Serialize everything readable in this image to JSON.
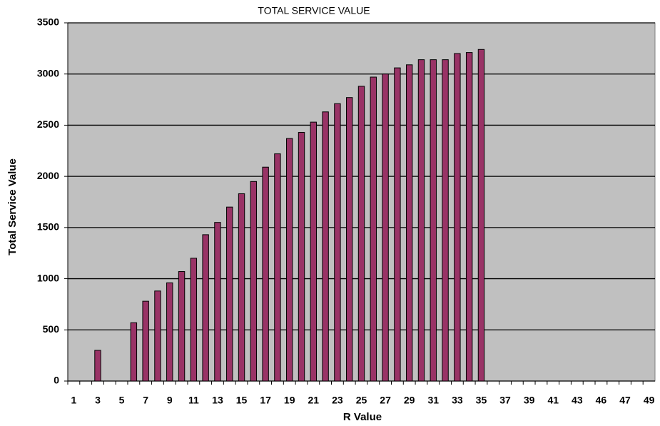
{
  "chart_data": {
    "type": "bar",
    "title": "TOTAL SERVICE VALUE",
    "xlabel": "R Value",
    "ylabel": "Total Service Value",
    "categories": [
      1,
      null,
      3,
      null,
      5,
      null,
      7,
      null,
      9,
      null,
      11,
      null,
      13,
      null,
      15,
      null,
      17,
      null,
      19,
      null,
      21,
      null,
      23,
      null,
      25,
      null,
      27,
      null,
      29,
      null,
      31,
      null,
      33,
      null,
      35,
      null,
      37,
      null,
      39,
      null,
      41,
      null,
      43,
      null,
      46,
      null,
      47,
      null,
      49
    ],
    "values": [
      null,
      null,
      300,
      null,
      null,
      570,
      780,
      880,
      960,
      1070,
      1200,
      1430,
      1550,
      1700,
      1830,
      1950,
      2090,
      2220,
      2370,
      2430,
      2530,
      2630,
      2710,
      2770,
      2880,
      2970,
      3000,
      3060,
      3090,
      3140,
      3140,
      3140,
      3200,
      3210,
      3240,
      null,
      null,
      null,
      null,
      null,
      null,
      null,
      null,
      null,
      null,
      null,
      null,
      null,
      null
    ],
    "color": "#993366",
    "ylim": [
      0,
      3500
    ],
    "yticks": [
      0,
      500,
      1000,
      1500,
      2000,
      2500,
      3000,
      3500
    ],
    "grid": true
  }
}
